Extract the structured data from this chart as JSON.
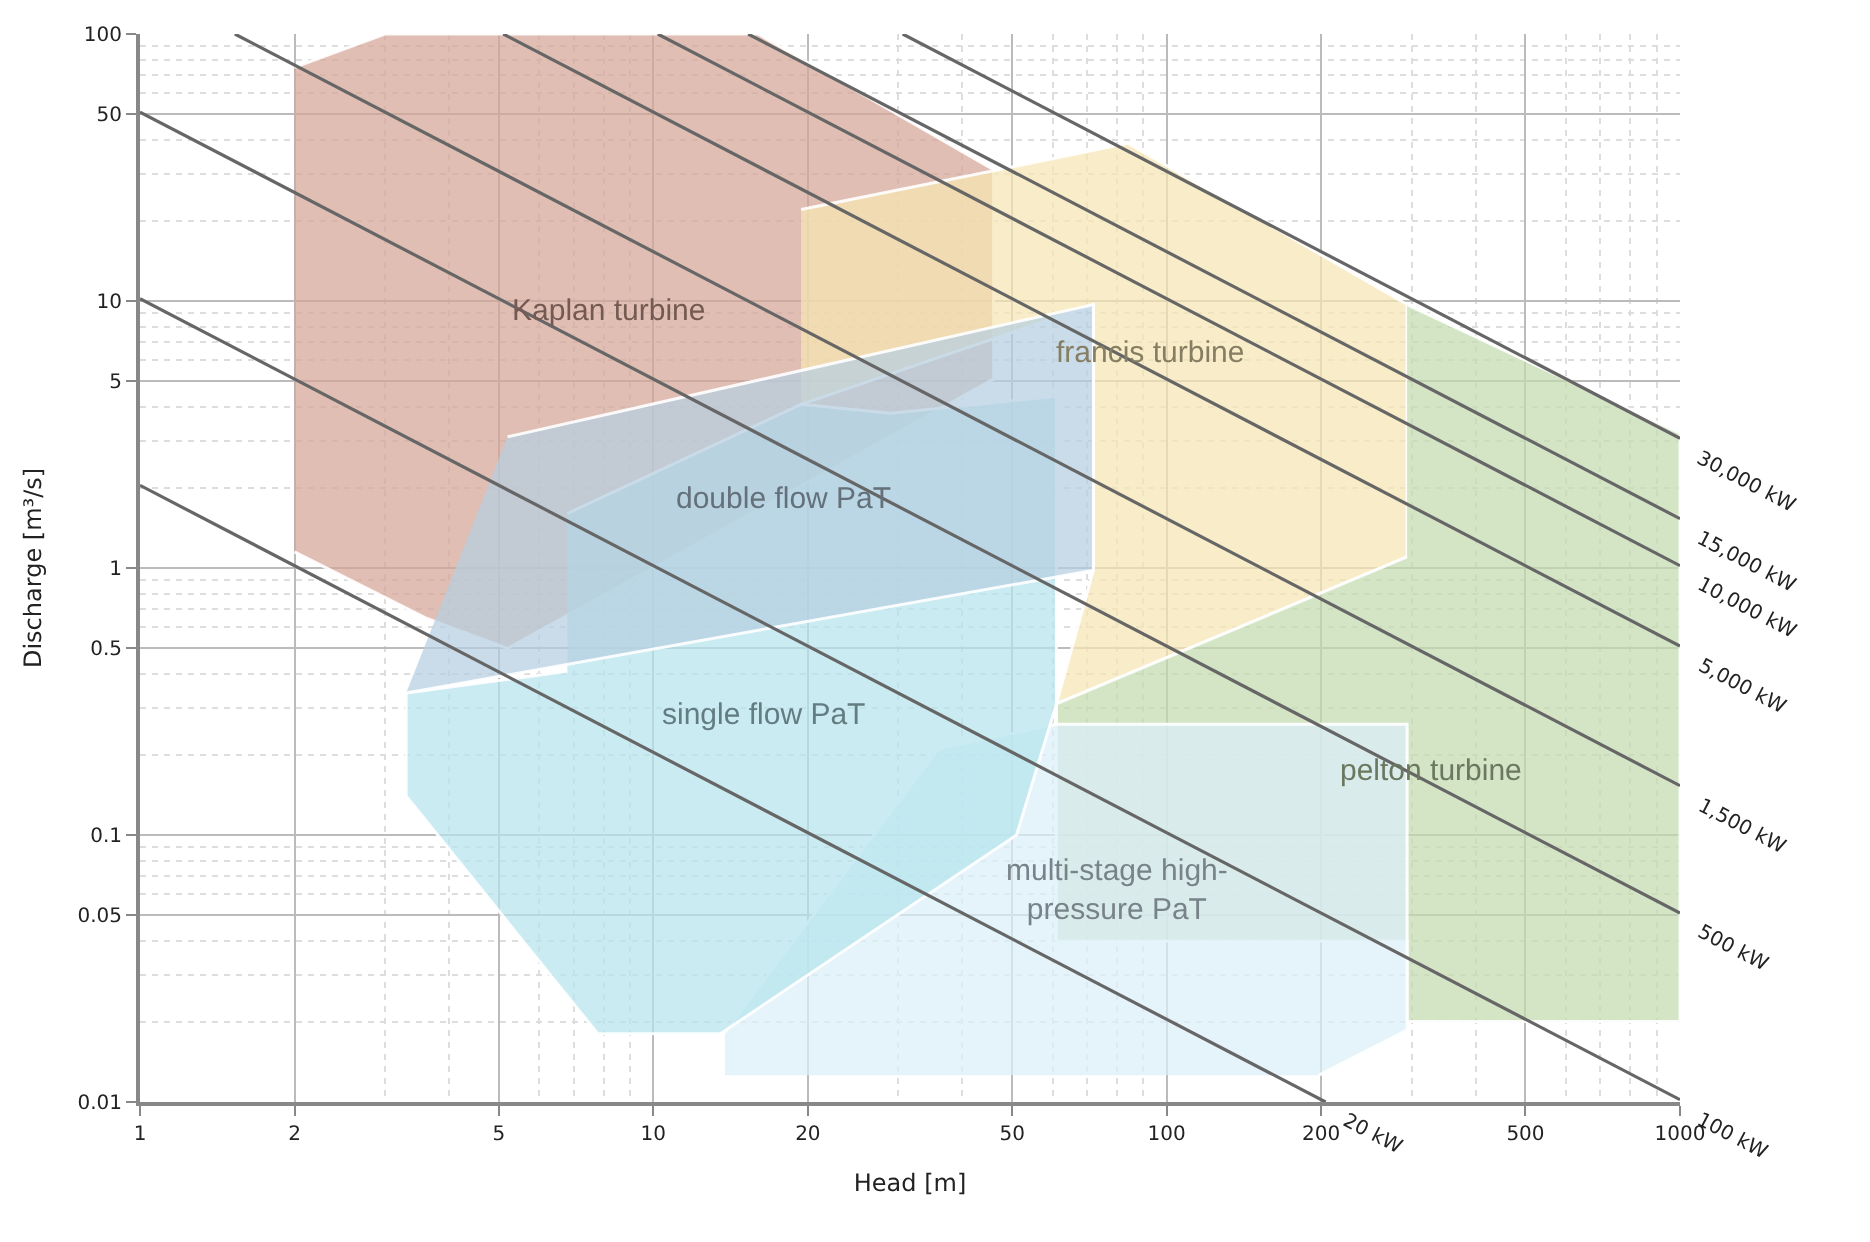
{
  "chart_data": {
    "type": "area",
    "xlabel": "Head [m]",
    "ylabel": "Discharge [m³/s]",
    "log": "xy",
    "grid": true,
    "legend": false,
    "xlim": [
      1,
      1000
    ],
    "xticks": [
      1,
      2,
      5,
      10,
      20,
      50,
      100,
      200,
      500,
      1000
    ],
    "ylim": [
      0.01,
      100
    ],
    "yticks": [
      0.01,
      0.05,
      0.1,
      0.5,
      1,
      5,
      10,
      50,
      100
    ],
    "series": [
      {
        "name": "Kaplan turbine",
        "color": "#d4a597",
        "x": [
          2,
          3,
          16,
          46,
          46,
          5.2,
          3.6,
          2
        ],
        "values": [
          75,
          100,
          100,
          31,
          5.1,
          0.5,
          0.65,
          1.15
        ]
      },
      {
        "name": "francis turbine",
        "color": "#f5e6b3",
        "x": [
          19.4,
          47,
          84,
          294,
          294,
          61,
          72,
          72,
          19.4
        ],
        "values": [
          22,
          31,
          39,
          9.7,
          1.1,
          0.31,
          0.98,
          9.7,
          4.1
        ]
      },
      {
        "name": "pelton turbine",
        "color": "#c3dbb0",
        "x": [
          294,
          1000,
          1000,
          294,
          294,
          61,
          61,
          294
        ],
        "values": [
          9.7,
          3.2,
          0.02,
          0.02,
          0.04,
          0.04,
          0.31,
          1.1
        ]
      },
      {
        "name": "multi-stage high-\npressure PaT",
        "color": "#dbeffa",
        "x": [
          13.7,
          13.7,
          36,
          61,
          294,
          294,
          198
        ],
        "values": [
          0.0126,
          0.018,
          0.21,
          0.26,
          0.26,
          0.0186,
          0.0126
        ]
      },
      {
        "name": "single flow PaT",
        "color": "#b4e3ec",
        "x": [
          6.8,
          19.4,
          29,
          61,
          61,
          51,
          13.5,
          7.8,
          3.3,
          3.3,
          6.8
        ],
        "values": [
          1.6,
          4.1,
          3.8,
          4.4,
          0.31,
          0.1,
          0.018,
          0.018,
          0.14,
          0.34,
          0.41
        ]
      },
      {
        "name": "double flow PaT",
        "color": "#b6cfe0",
        "x": [
          5.2,
          72,
          72,
          3.3
        ],
        "values": [
          3.1,
          9.7,
          0.98,
          0.34
        ]
      },
      {
        "type": "line",
        "name": "30,000 kW",
        "color": "#666666",
        "x": [
          30.6,
          1000
        ],
        "values": [
          100,
          3.06
        ]
      },
      {
        "type": "line",
        "name": "15,000 kW",
        "color": "#666666",
        "x": [
          15.3,
          1000
        ],
        "values": [
          100,
          1.53
        ]
      },
      {
        "type": "line",
        "name": "10,000 kW",
        "color": "#666666",
        "x": [
          10.2,
          1000
        ],
        "values": [
          100,
          1.02
        ]
      },
      {
        "type": "line",
        "name": "5,000 kW",
        "color": "#666666",
        "x": [
          5.1,
          1000
        ],
        "values": [
          100,
          0.51
        ]
      },
      {
        "type": "line",
        "name": "1,500 kW",
        "color": "#666666",
        "x": [
          1.53,
          1000
        ],
        "values": [
          100,
          0.153
        ]
      },
      {
        "type": "line",
        "name": "500 kW",
        "color": "#666666",
        "x": [
          1,
          1000
        ],
        "values": [
          51,
          0.051
        ]
      },
      {
        "type": "line",
        "name": "100 kW",
        "color": "#666666",
        "x": [
          1,
          1000
        ],
        "values": [
          10.2,
          0.0102
        ]
      },
      {
        "type": "line",
        "name": "20 kW",
        "color": "#666666",
        "x": [
          1,
          204
        ],
        "values": [
          2.04,
          0.01
        ]
      }
    ]
  }
}
